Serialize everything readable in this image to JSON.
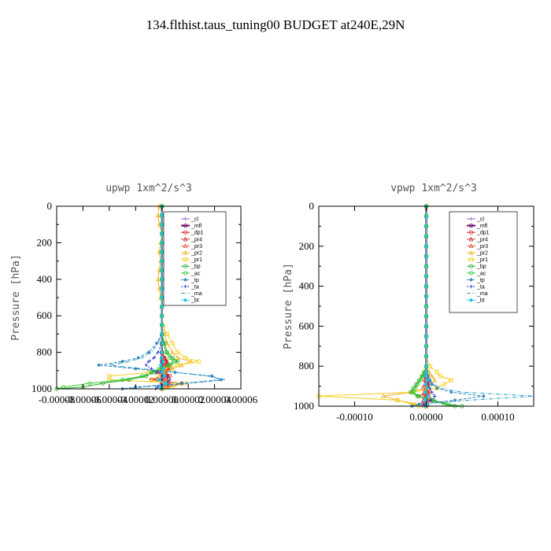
{
  "title": "134.flthist.taus_tuning00  BUDGET at240E,29N",
  "ylabel": "Pressure [hPa]",
  "colors": {
    "_cl": "#8855cc",
    "_mfl": "#6a0a6a",
    "_dp1": "#d01515",
    "_pr4": "#c42222",
    "_pr3": "#e84a2a",
    "_pr2": "#f0b020",
    "_pr1": "#f5d020",
    "_bp": "#22a522",
    "_ac": "#2ec82e",
    "_tp": "#2880b8",
    "_ta": "#1f2fd0",
    "_ma": "#2098c8",
    "_bt": "#18c8e8"
  },
  "chart_data": [
    {
      "type": "line",
      "title": "upwp   1xm^2/s^3",
      "ylabel": "Pressure [hPa]",
      "xlim": [
        -8e-05,
        6e-05
      ],
      "ylim": [
        1000,
        0
      ],
      "xticks": [
        -8e-05,
        -6e-05,
        -4e-05,
        -2e-05,
        0.0,
        2e-05,
        4e-05,
        6e-05
      ],
      "xtick_labels": [
        "-0.00008",
        "-0.00006",
        "-0.00004",
        "-0.00002",
        "0.00000",
        "0.00002",
        "0.00004",
        "0.00006"
      ],
      "yticks": [
        0,
        200,
        400,
        600,
        800,
        1000
      ],
      "legend": [
        "_cl",
        "_mfl",
        "_dp1",
        "_pr4",
        "_pr3",
        "_pr2",
        "_pr1",
        "_bp",
        "_ac",
        "_tp",
        "_ta",
        "_ma",
        "_bt"
      ],
      "legend_position": "upper-right",
      "y": [
        0,
        50,
        100,
        150,
        200,
        250,
        300,
        350,
        400,
        450,
        500,
        550,
        600,
        650,
        700,
        750,
        800,
        830,
        850,
        870,
        890,
        910,
        930,
        950,
        970,
        990,
        1000
      ],
      "series": [
        {
          "name": "_cl",
          "values": [
            0,
            0,
            0,
            0,
            0,
            0,
            0,
            0,
            0,
            0,
            0,
            0,
            0,
            0,
            0,
            0,
            0,
            0,
            0,
            0,
            0,
            0,
            0,
            0,
            0,
            0,
            0
          ]
        },
        {
          "name": "_mfl",
          "values": [
            0,
            0,
            0,
            0,
            0,
            0,
            0,
            0,
            0,
            0,
            0,
            0,
            0,
            0,
            0,
            0,
            0,
            0,
            0,
            0,
            0,
            0,
            0,
            0,
            0,
            0,
            0
          ]
        },
        {
          "name": "_dp1",
          "values": [
            0,
            0,
            0,
            0,
            0,
            0,
            0,
            0,
            0,
            0,
            0,
            0,
            0,
            0,
            0,
            0,
            0,
            2e-06,
            3e-06,
            5e-06,
            6e-06,
            -4e-06,
            6e-06,
            -8e-06,
            1.5e-05,
            4e-06,
            0
          ]
        },
        {
          "name": "_pr4",
          "values": [
            0,
            0,
            0,
            0,
            0,
            0,
            0,
            0,
            0,
            0,
            0,
            0,
            0,
            0,
            0,
            0,
            0,
            2e-06,
            4e-06,
            3e-06,
            5e-06,
            3e-06,
            5e-06,
            4e-06,
            6e-06,
            3e-06,
            0
          ]
        },
        {
          "name": "_pr3",
          "values": [
            0,
            0,
            0,
            0,
            0,
            0,
            0,
            0,
            0,
            0,
            0,
            0,
            0,
            0,
            0,
            0,
            0,
            1e-06,
            2e-06,
            2e-06,
            3e-06,
            2e-06,
            3e-06,
            2e-06,
            4e-06,
            2e-06,
            0
          ]
        },
        {
          "name": "_pr2",
          "values": [
            -2e-06,
            -3e-06,
            -2e-06,
            0,
            -1e-06,
            -2e-06,
            -1e-06,
            -2e-06,
            -3e-06,
            -2e-06,
            -1e-06,
            0,
            0,
            1e-06,
            2e-06,
            4e-06,
            8e-06,
            1.2e-05,
            2.2e-05,
            1.5e-05,
            8e-06,
            2e-06,
            -2e-06,
            -8e-06,
            2e-06,
            3e-06,
            0
          ]
        },
        {
          "name": "_pr1",
          "values": [
            0,
            0,
            0,
            0,
            0,
            0,
            0,
            0,
            0,
            0,
            0,
            0,
            0,
            0,
            4e-06,
            8e-06,
            1.2e-05,
            1.8e-05,
            2.8e-05,
            1.2e-05,
            2e-06,
            -1e-05,
            -4e-05,
            -4e-05,
            1.8e-05,
            8e-06,
            0
          ]
        },
        {
          "name": "_bp",
          "values": [
            0,
            0,
            0,
            0,
            0,
            0,
            0,
            0,
            0,
            0,
            0,
            0,
            0,
            0,
            0,
            2e-06,
            4e-06,
            8e-06,
            1.2e-05,
            6e-06,
            -2e-06,
            -8e-06,
            -1.2e-05,
            -2.5e-05,
            -4.5e-05,
            -6e-05,
            -8e-05
          ]
        },
        {
          "name": "_ac",
          "values": [
            0,
            0,
            0,
            0,
            0,
            0,
            0,
            0,
            0,
            0,
            0,
            0,
            0,
            0,
            0,
            1e-06,
            3e-06,
            6e-06,
            9e-06,
            5e-06,
            -2e-06,
            -6e-06,
            -1.5e-05,
            -3e-05,
            -5.5e-05,
            -7.5e-05,
            -8e-05
          ]
        },
        {
          "name": "_tp",
          "values": [
            0,
            0,
            0,
            0,
            0,
            0,
            0,
            0,
            0,
            0,
            0,
            0,
            0,
            0,
            0,
            -4e-06,
            -1e-05,
            -1.8e-05,
            -3e-05,
            -4.8e-05,
            -2e-05,
            1e-05,
            3.8e-05,
            4.5e-05,
            1.5e-05,
            -2e-05,
            -3e-05
          ]
        },
        {
          "name": "_ta",
          "values": [
            0,
            0,
            0,
            0,
            0,
            0,
            0,
            0,
            0,
            0,
            0,
            0,
            0,
            0,
            0,
            0,
            -3e-06,
            -6e-06,
            -1e-05,
            -1.2e-05,
            -8e-06,
            -4e-06,
            3e-06,
            6e-06,
            4e-06,
            -3e-06,
            -5e-06
          ]
        },
        {
          "name": "_ma",
          "values": [
            0,
            0,
            0,
            0,
            0,
            0,
            0,
            0,
            0,
            0,
            0,
            0,
            0,
            0,
            0,
            -3e-06,
            -8e-06,
            -1.5e-05,
            -2.5e-05,
            -4e-05,
            -1.5e-05,
            1e-05,
            3.5e-05,
            4.8e-05,
            2e-05,
            -1.5e-05,
            -2.5e-05
          ]
        },
        {
          "name": "_bt",
          "values": [
            0,
            0,
            0,
            0,
            0,
            0,
            0,
            0,
            0,
            0,
            0,
            0,
            0,
            0,
            0,
            0,
            0,
            0,
            1e-06,
            -1e-06,
            1e-06,
            0,
            2e-06,
            -2e-06,
            3e-06,
            -1e-06,
            0
          ]
        }
      ]
    },
    {
      "type": "line",
      "title": "vpwp   1xm^2/s^3",
      "ylabel": "Pressure [hPa]",
      "xlim": [
        -0.00015,
        0.00015
      ],
      "ylim": [
        1000,
        0
      ],
      "xticks": [
        -0.0001,
        0.0,
        0.0001
      ],
      "xtick_labels": [
        "-0.00010",
        "0.00000",
        "0.00010"
      ],
      "yticks": [
        0,
        200,
        400,
        600,
        800,
        1000
      ],
      "legend": [
        "_cl",
        "_mfl",
        "_dp1",
        "_pr4",
        "_pr3",
        "_pr2",
        "_pr1",
        "_bp",
        "_ac",
        "_tp",
        "_ta",
        "_ma",
        "_bt"
      ],
      "legend_position": "upper-right",
      "y": [
        0,
        50,
        100,
        150,
        200,
        250,
        300,
        350,
        400,
        450,
        500,
        550,
        600,
        650,
        700,
        750,
        800,
        830,
        850,
        870,
        890,
        910,
        930,
        950,
        970,
        990,
        1000
      ],
      "series": [
        {
          "name": "_cl",
          "values": [
            0,
            0,
            0,
            0,
            0,
            0,
            0,
            0,
            0,
            0,
            0,
            0,
            0,
            0,
            0,
            0,
            0,
            0,
            0,
            0,
            0,
            0,
            0,
            0,
            0,
            0,
            0
          ]
        },
        {
          "name": "_mfl",
          "values": [
            0,
            0,
            0,
            0,
            0,
            0,
            0,
            0,
            0,
            0,
            0,
            0,
            0,
            0,
            0,
            0,
            0,
            0,
            0,
            0,
            0,
            0,
            0,
            0,
            0,
            0,
            0
          ]
        },
        {
          "name": "_dp1",
          "values": [
            0,
            0,
            0,
            0,
            0,
            0,
            0,
            0,
            0,
            0,
            0,
            0,
            0,
            0,
            0,
            0,
            0,
            0,
            2e-06,
            -2e-06,
            3e-06,
            -4e-06,
            5e-06,
            -1.2e-05,
            1e-05,
            -5e-06,
            0
          ]
        },
        {
          "name": "_pr4",
          "values": [
            0,
            0,
            0,
            0,
            0,
            0,
            0,
            0,
            0,
            0,
            0,
            0,
            0,
            0,
            0,
            0,
            0,
            0,
            0,
            2e-06,
            -2e-06,
            3e-06,
            -3e-06,
            4e-06,
            -4e-06,
            2e-06,
            0
          ]
        },
        {
          "name": "_pr3",
          "values": [
            0,
            0,
            0,
            0,
            0,
            0,
            0,
            0,
            0,
            0,
            0,
            0,
            0,
            0,
            0,
            0,
            0,
            0,
            1e-06,
            -1e-06,
            2e-06,
            -2e-06,
            2e-06,
            -3e-06,
            3e-06,
            -1e-06,
            0
          ]
        },
        {
          "name": "_pr2",
          "values": [
            0,
            0,
            0,
            0,
            0,
            0,
            0,
            0,
            0,
            0,
            0,
            0,
            0,
            0,
            0,
            0,
            0,
            4e-06,
            8e-06,
            1.2e-05,
            6e-06,
            -2e-06,
            -2e-05,
            -6e-05,
            -4e-05,
            -1.5e-05,
            0
          ]
        },
        {
          "name": "_pr1",
          "values": [
            0,
            0,
            0,
            0,
            0,
            0,
            0,
            0,
            0,
            0,
            0,
            0,
            0,
            0,
            0,
            0,
            5e-06,
            1.5e-05,
            2e-05,
            3.5e-05,
            2.5e-05,
            1.5e-05,
            -2e-05,
            -0.00015,
            -4e-05,
            -2e-05,
            -1e-05
          ]
        },
        {
          "name": "_bp",
          "values": [
            0,
            0,
            0,
            0,
            0,
            0,
            0,
            0,
            0,
            0,
            0,
            0,
            0,
            0,
            0,
            0,
            0,
            -3e-06,
            -6e-06,
            -1e-05,
            -1.4e-05,
            -1.8e-05,
            -2.2e-05,
            -1.2e-05,
            1e-05,
            3e-05,
            5e-05
          ]
        },
        {
          "name": "_ac",
          "values": [
            0,
            0,
            0,
            0,
            0,
            0,
            0,
            0,
            0,
            0,
            0,
            0,
            0,
            0,
            0,
            0,
            0,
            -2e-06,
            -5e-06,
            -8e-06,
            -1.2e-05,
            -1.5e-05,
            -1.8e-05,
            -1e-05,
            8e-06,
            2.5e-05,
            4e-05
          ]
        },
        {
          "name": "_tp",
          "values": [
            0,
            0,
            0,
            0,
            0,
            0,
            0,
            0,
            0,
            0,
            0,
            0,
            0,
            0,
            0,
            0,
            0,
            0,
            2e-06,
            5e-06,
            8e-06,
            1.5e-05,
            3.5e-05,
            8e-05,
            4e-05,
            -1e-05,
            -2e-05
          ]
        },
        {
          "name": "_ta",
          "values": [
            0,
            0,
            0,
            0,
            0,
            0,
            0,
            0,
            0,
            0,
            0,
            0,
            0,
            0,
            0,
            0,
            0,
            0,
            0,
            2e-06,
            3e-06,
            5e-06,
            8e-06,
            1.2e-05,
            6e-06,
            -3e-06,
            -5e-06
          ]
        },
        {
          "name": "_ma",
          "values": [
            0,
            0,
            0,
            0,
            0,
            0,
            0,
            0,
            0,
            0,
            0,
            0,
            0,
            0,
            0,
            0,
            0,
            0,
            3e-06,
            6e-06,
            1e-05,
            2e-05,
            5e-05,
            0.00015,
            6e-05,
            -1e-05,
            -2e-05
          ]
        },
        {
          "name": "_bt",
          "values": [
            0,
            0,
            0,
            0,
            0,
            0,
            0,
            0,
            0,
            0,
            0,
            0,
            0,
            0,
            0,
            0,
            0,
            0,
            0,
            1e-06,
            -1e-06,
            1e-06,
            -1e-06,
            2e-06,
            -2e-06,
            1e-06,
            0
          ]
        }
      ]
    }
  ]
}
